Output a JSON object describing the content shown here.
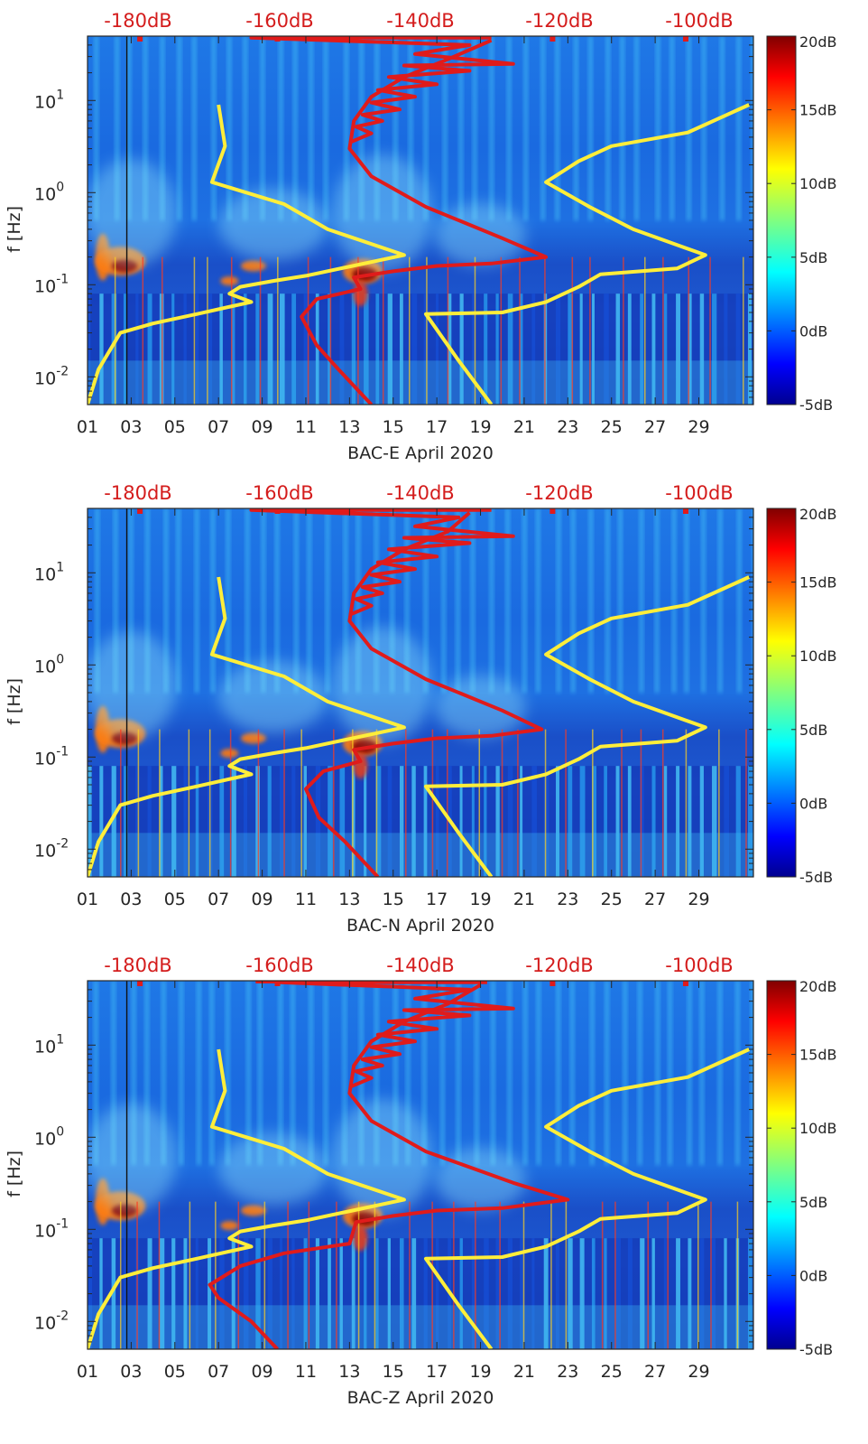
{
  "chart_data": [
    {
      "type": "heatmap",
      "xlabel": "BAC-E April 2020",
      "ylabel": "f [Hz]",
      "x_ticks": [
        "01",
        "03",
        "05",
        "07",
        "09",
        "11",
        "13",
        "15",
        "17",
        "19",
        "21",
        "23",
        "25",
        "27",
        "29"
      ],
      "y_ticks": [
        {
          "label_base": "10",
          "label_exp": "-2",
          "value": 0.01
        },
        {
          "label_base": "10",
          "label_exp": "-1",
          "value": 0.1
        },
        {
          "label_base": "10",
          "label_exp": "0",
          "value": 1
        },
        {
          "label_base": "10",
          "label_exp": "1",
          "value": 10
        }
      ],
      "yscale": "log",
      "xlim": [
        1,
        31.5
      ],
      "ylim": [
        0.005,
        50
      ],
      "top_scale_labels": [
        "-180dB",
        "-160dB",
        "-140dB",
        "-120dB",
        "-100dB"
      ],
      "colorbar": {
        "labels": [
          "20dB",
          "15dB",
          "10dB",
          "5dB",
          "0dB",
          "-5dB"
        ],
        "range": [
          -5,
          20
        ],
        "colormap": "jet"
      },
      "curves": [
        {
          "color": "#ffee3a",
          "points": [
            [
              1,
              0.005
            ],
            [
              1.5,
              0.012
            ],
            [
              2.5,
              0.03
            ],
            [
              4,
              0.038
            ],
            [
              6,
              0.048
            ],
            [
              8.5,
              0.065
            ],
            [
              7.5,
              0.08
            ],
            [
              8,
              0.095
            ],
            [
              9.5,
              0.11
            ],
            [
              11,
              0.125
            ],
            [
              15.5,
              0.21
            ],
            [
              12,
              0.4
            ],
            [
              10,
              0.75
            ],
            [
              6.7,
              1.3
            ],
            [
              7.3,
              3.2
            ],
            [
              7,
              9
            ]
          ]
        },
        {
          "color": "#ffee3a",
          "points": [
            [
              19.5,
              0.005
            ],
            [
              18,
              0.015
            ],
            [
              16.5,
              0.048
            ],
            [
              20,
              0.05
            ],
            [
              22,
              0.065
            ],
            [
              23.5,
              0.095
            ],
            [
              24.5,
              0.13
            ],
            [
              28,
              0.15
            ],
            [
              29.3,
              0.21
            ],
            [
              26,
              0.4
            ],
            [
              24,
              0.7
            ],
            [
              22,
              1.3
            ],
            [
              23.5,
              2.2
            ],
            [
              25,
              3.2
            ],
            [
              28.5,
              4.5
            ],
            [
              31.3,
              9
            ]
          ]
        },
        {
          "color": "#e01b1b",
          "points": [
            [
              14,
              0.005
            ],
            [
              12.5,
              0.012
            ],
            [
              11.5,
              0.022
            ],
            [
              10.8,
              0.045
            ],
            [
              11.5,
              0.07
            ],
            [
              13.5,
              0.09
            ],
            [
              13.2,
              0.12
            ],
            [
              15,
              0.14
            ],
            [
              17,
              0.16
            ],
            [
              19.5,
              0.17
            ],
            [
              22,
              0.2
            ],
            [
              20,
              0.32
            ],
            [
              16.5,
              0.7
            ],
            [
              14,
              1.5
            ],
            [
              13,
              3
            ],
            [
              13.2,
              6
            ],
            [
              14,
              11
            ],
            [
              15.5,
              18
            ],
            [
              17.5,
              28
            ],
            [
              19.5,
              45
            ]
          ]
        },
        {
          "color": "#e01b1b",
          "points": [
            [
              13,
              3.5
            ],
            [
              14,
              4.4
            ],
            [
              13.3,
              5.2
            ],
            [
              14.5,
              6
            ],
            [
              13.6,
              7
            ],
            [
              15.3,
              8
            ],
            [
              14,
              9.5
            ],
            [
              16,
              11
            ],
            [
              14.3,
              13
            ],
            [
              17,
              15
            ],
            [
              14.8,
              18
            ],
            [
              18.5,
              21
            ],
            [
              15.5,
              24
            ],
            [
              20.5,
              25
            ],
            [
              16,
              32
            ],
            [
              18.5,
              40
            ],
            [
              8.5,
              48
            ],
            [
              19.5,
              48
            ]
          ]
        }
      ]
    },
    {
      "type": "heatmap",
      "xlabel": "BAC-N April 2020",
      "ylabel": "f [Hz]",
      "x_ticks": [
        "01",
        "03",
        "05",
        "07",
        "09",
        "11",
        "13",
        "15",
        "17",
        "19",
        "21",
        "23",
        "25",
        "27",
        "29"
      ],
      "y_ticks": [
        {
          "label_base": "10",
          "label_exp": "-2",
          "value": 0.01
        },
        {
          "label_base": "10",
          "label_exp": "-1",
          "value": 0.1
        },
        {
          "label_base": "10",
          "label_exp": "0",
          "value": 1
        },
        {
          "label_base": "10",
          "label_exp": "1",
          "value": 10
        }
      ],
      "yscale": "log",
      "xlim": [
        1,
        31.5
      ],
      "ylim": [
        0.005,
        50
      ],
      "top_scale_labels": [
        "-180dB",
        "-160dB",
        "-140dB",
        "-120dB",
        "-100dB"
      ],
      "colorbar": {
        "labels": [
          "20dB",
          "15dB",
          "10dB",
          "5dB",
          "0dB",
          "-5dB"
        ],
        "range": [
          -5,
          20
        ],
        "colormap": "jet"
      },
      "curves": [
        {
          "color": "#ffee3a",
          "points": [
            [
              1,
              0.005
            ],
            [
              1.5,
              0.012
            ],
            [
              2.5,
              0.03
            ],
            [
              4,
              0.038
            ],
            [
              6,
              0.048
            ],
            [
              8.5,
              0.065
            ],
            [
              7.5,
              0.08
            ],
            [
              8,
              0.095
            ],
            [
              9.5,
              0.11
            ],
            [
              11,
              0.125
            ],
            [
              15.5,
              0.21
            ],
            [
              12,
              0.4
            ],
            [
              10,
              0.75
            ],
            [
              6.7,
              1.3
            ],
            [
              7.3,
              3.2
            ],
            [
              7,
              9
            ]
          ]
        },
        {
          "color": "#ffee3a",
          "points": [
            [
              19.5,
              0.005
            ],
            [
              18,
              0.015
            ],
            [
              16.5,
              0.048
            ],
            [
              20,
              0.05
            ],
            [
              22,
              0.065
            ],
            [
              23.5,
              0.095
            ],
            [
              24.5,
              0.13
            ],
            [
              28,
              0.15
            ],
            [
              29.3,
              0.21
            ],
            [
              26,
              0.4
            ],
            [
              24,
              0.7
            ],
            [
              22,
              1.3
            ],
            [
              23.5,
              2.2
            ],
            [
              25,
              3.2
            ],
            [
              28.5,
              4.5
            ],
            [
              31.3,
              9
            ]
          ]
        },
        {
          "color": "#e01b1b",
          "points": [
            [
              14.3,
              0.005
            ],
            [
              12.8,
              0.012
            ],
            [
              11.6,
              0.022
            ],
            [
              11,
              0.045
            ],
            [
              11.8,
              0.07
            ],
            [
              13.5,
              0.09
            ],
            [
              13.2,
              0.12
            ],
            [
              15,
              0.14
            ],
            [
              17,
              0.16
            ],
            [
              19.5,
              0.17
            ],
            [
              21.8,
              0.2
            ],
            [
              20,
              0.32
            ],
            [
              16.5,
              0.7
            ],
            [
              14,
              1.5
            ],
            [
              13,
              3
            ],
            [
              13.2,
              6
            ],
            [
              14,
              11
            ],
            [
              15.5,
              18
            ],
            [
              17.5,
              28
            ],
            [
              18.5,
              45
            ]
          ]
        },
        {
          "color": "#e01b1b",
          "points": [
            [
              13,
              3.5
            ],
            [
              14,
              4.4
            ],
            [
              13.3,
              5.2
            ],
            [
              14.5,
              6
            ],
            [
              13.6,
              7
            ],
            [
              15.3,
              8
            ],
            [
              14,
              9.5
            ],
            [
              16,
              11
            ],
            [
              14.3,
              13
            ],
            [
              17,
              15
            ],
            [
              14.8,
              18
            ],
            [
              18.5,
              21
            ],
            [
              15.5,
              24
            ],
            [
              20.5,
              25
            ],
            [
              16,
              32
            ],
            [
              18,
              40
            ],
            [
              8.5,
              48
            ],
            [
              19.5,
              48
            ]
          ]
        }
      ]
    },
    {
      "type": "heatmap",
      "xlabel": "BAC-Z April 2020",
      "ylabel": "f [Hz]",
      "x_ticks": [
        "01",
        "03",
        "05",
        "07",
        "09",
        "11",
        "13",
        "15",
        "17",
        "19",
        "21",
        "23",
        "25",
        "27",
        "29"
      ],
      "y_ticks": [
        {
          "label_base": "10",
          "label_exp": "-2",
          "value": 0.01
        },
        {
          "label_base": "10",
          "label_exp": "-1",
          "value": 0.1
        },
        {
          "label_base": "10",
          "label_exp": "0",
          "value": 1
        },
        {
          "label_base": "10",
          "label_exp": "1",
          "value": 10
        }
      ],
      "yscale": "log",
      "xlim": [
        1,
        31.5
      ],
      "ylim": [
        0.005,
        50
      ],
      "top_scale_labels": [
        "-180dB",
        "-160dB",
        "-140dB",
        "-120dB",
        "-100dB"
      ],
      "colorbar": {
        "labels": [
          "20dB",
          "15dB",
          "10dB",
          "5dB",
          "0dB",
          "-5dB"
        ],
        "range": [
          -5,
          20
        ],
        "colormap": "jet"
      },
      "curves": [
        {
          "color": "#ffee3a",
          "points": [
            [
              1,
              0.005
            ],
            [
              1.5,
              0.012
            ],
            [
              2.5,
              0.03
            ],
            [
              4,
              0.038
            ],
            [
              6,
              0.048
            ],
            [
              8.5,
              0.065
            ],
            [
              7.5,
              0.08
            ],
            [
              8,
              0.095
            ],
            [
              9.5,
              0.11
            ],
            [
              11,
              0.125
            ],
            [
              15.5,
              0.21
            ],
            [
              12,
              0.4
            ],
            [
              10,
              0.75
            ],
            [
              6.7,
              1.3
            ],
            [
              7.3,
              3.2
            ],
            [
              7,
              9
            ]
          ]
        },
        {
          "color": "#ffee3a",
          "points": [
            [
              19.5,
              0.005
            ],
            [
              18,
              0.015
            ],
            [
              16.5,
              0.048
            ],
            [
              20,
              0.05
            ],
            [
              22,
              0.065
            ],
            [
              23.5,
              0.095
            ],
            [
              24.5,
              0.13
            ],
            [
              28,
              0.15
            ],
            [
              29.3,
              0.21
            ],
            [
              26,
              0.4
            ],
            [
              24,
              0.7
            ],
            [
              22,
              1.3
            ],
            [
              23.5,
              2.2
            ],
            [
              25,
              3.2
            ],
            [
              28.5,
              4.5
            ],
            [
              31.3,
              9
            ]
          ]
        },
        {
          "color": "#e01b1b",
          "points": [
            [
              9.7,
              0.005
            ],
            [
              8.5,
              0.01
            ],
            [
              7,
              0.018
            ],
            [
              6.6,
              0.025
            ],
            [
              8,
              0.04
            ],
            [
              10,
              0.055
            ],
            [
              13,
              0.07
            ],
            [
              13.3,
              0.12
            ],
            [
              15,
              0.14
            ],
            [
              17,
              0.16
            ],
            [
              20,
              0.17
            ],
            [
              23,
              0.21
            ],
            [
              20.5,
              0.32
            ],
            [
              16.5,
              0.7
            ],
            [
              14,
              1.5
            ],
            [
              13,
              3
            ],
            [
              13.2,
              6
            ],
            [
              14,
              11
            ],
            [
              15.5,
              18
            ],
            [
              17.5,
              28
            ],
            [
              19,
              45
            ]
          ]
        },
        {
          "color": "#e01b1b",
          "points": [
            [
              13,
              3.5
            ],
            [
              14,
              4.4
            ],
            [
              13.3,
              5.2
            ],
            [
              14.5,
              6
            ],
            [
              13.6,
              7
            ],
            [
              15.3,
              8
            ],
            [
              14,
              9.5
            ],
            [
              16,
              11
            ],
            [
              14.3,
              13
            ],
            [
              17,
              15
            ],
            [
              14.8,
              18
            ],
            [
              18.5,
              21
            ],
            [
              15.5,
              24
            ],
            [
              20.5,
              25
            ],
            [
              16,
              32
            ],
            [
              18.5,
              40
            ],
            [
              9.8,
              48
            ],
            [
              19.3,
              48
            ]
          ]
        }
      ]
    }
  ]
}
